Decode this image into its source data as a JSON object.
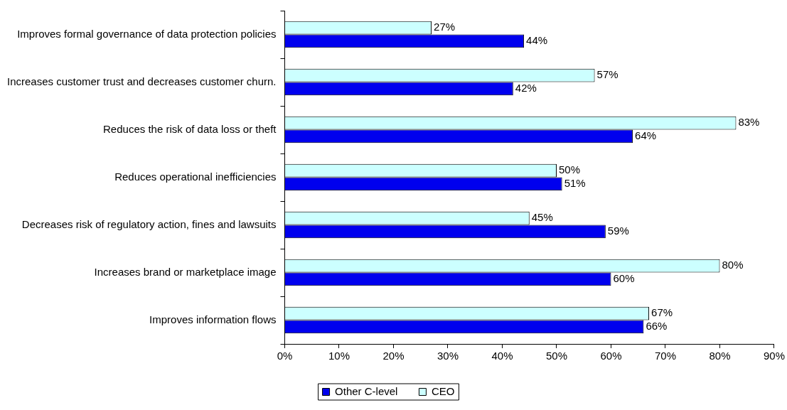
{
  "chart_data": {
    "type": "bar",
    "orientation": "horizontal",
    "categories": [
      "Improves formal governance of data protection policies",
      "Increases customer trust and decreases customer churn.",
      "Reduces the risk of data loss or theft",
      "Reduces operational inefficiencies",
      "Decreases risk of regulatory action, fines and lawsuits",
      "Increases brand or marketplace image",
      "Improves information flows"
    ],
    "series": [
      {
        "name": "Other C-level",
        "color": "#0000ee",
        "values": [
          44,
          42,
          64,
          51,
          59,
          60,
          66
        ],
        "value_labels": [
          "44%",
          "42%",
          "64%",
          "51%",
          "59%",
          "60%",
          "66%"
        ]
      },
      {
        "name": "CEO",
        "color": "#ccffff",
        "values": [
          27,
          57,
          83,
          50,
          45,
          80,
          67
        ],
        "value_labels": [
          "27%",
          "57%",
          "83%",
          "50%",
          "45%",
          "80%",
          "67%"
        ]
      }
    ],
    "xlim": [
      0,
      90
    ],
    "xticks": [
      {
        "value": 0,
        "label": "0%"
      },
      {
        "value": 10,
        "label": "10%"
      },
      {
        "value": 20,
        "label": "20%"
      },
      {
        "value": 30,
        "label": "30%"
      },
      {
        "value": 40,
        "label": "40%"
      },
      {
        "value": 50,
        "label": "50%"
      },
      {
        "value": 60,
        "label": "60%"
      },
      {
        "value": 70,
        "label": "70%"
      },
      {
        "value": 80,
        "label": "80%"
      },
      {
        "value": 90,
        "label": "90%"
      }
    ],
    "grid": false,
    "legend": "bottom"
  }
}
